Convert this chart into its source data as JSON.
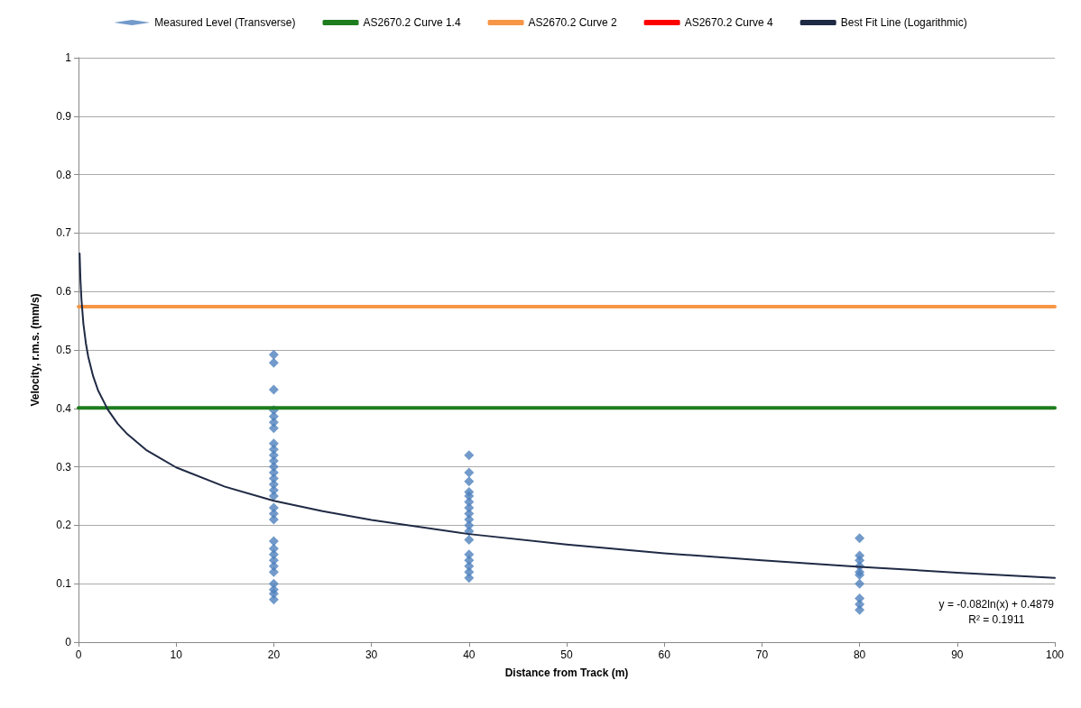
{
  "chart_data": {
    "type": "scatter",
    "xlabel": "Distance from Track (m)",
    "ylabel": "Velocity, r.m.s. (mm/s)",
    "xlim": [
      0,
      100
    ],
    "xticks": [
      0,
      10,
      20,
      30,
      40,
      50,
      60,
      70,
      80,
      90,
      100
    ],
    "ylim": [
      0,
      1
    ],
    "yticks": [
      0,
      0.1,
      0.2,
      0.3,
      0.4,
      0.5,
      0.6,
      0.7,
      0.8,
      0.9,
      1
    ],
    "grid": "y",
    "legend": "top",
    "annotations": [
      "y = -0.082ln(x) + 0.4879",
      "R² = 0.1911"
    ],
    "series": [
      {
        "name": "Measured Level (Transverse)",
        "marker": "diamond",
        "color": "#4f81bd",
        "x": [
          20,
          20,
          20,
          20,
          20,
          20,
          20,
          20,
          20,
          20,
          20,
          20,
          20,
          20,
          20,
          20,
          20,
          20,
          20,
          20,
          20,
          20,
          20,
          20,
          20,
          20,
          20,
          20,
          20,
          20,
          40,
          40,
          40,
          40,
          40,
          40,
          40,
          40,
          40,
          40,
          40,
          40,
          40,
          40,
          40,
          40,
          40,
          80,
          80,
          80,
          80,
          80,
          80,
          80,
          80,
          80,
          80
        ],
        "values": [
          0.492,
          0.478,
          0.432,
          0.397,
          0.386,
          0.376,
          0.366,
          0.34,
          0.33,
          0.32,
          0.31,
          0.3,
          0.29,
          0.28,
          0.27,
          0.26,
          0.25,
          0.23,
          0.22,
          0.21,
          0.173,
          0.16,
          0.15,
          0.14,
          0.13,
          0.12,
          0.1,
          0.09,
          0.083,
          0.073,
          0.32,
          0.29,
          0.275,
          0.257,
          0.25,
          0.24,
          0.23,
          0.22,
          0.21,
          0.2,
          0.19,
          0.175,
          0.15,
          0.14,
          0.13,
          0.12,
          0.11,
          0.178,
          0.148,
          0.14,
          0.13,
          0.12,
          0.115,
          0.1,
          0.075,
          0.065,
          0.055
        ]
      },
      {
        "name": "AS2670.2 Curve 1.4",
        "type": "line",
        "marker": "none",
        "color": "#1e7d1e",
        "x": [
          0,
          100
        ],
        "values": [
          0.401,
          0.401
        ]
      },
      {
        "name": "AS2670.2 Curve 2",
        "type": "line",
        "marker": "none",
        "color": "#f79646",
        "x": [
          0,
          100
        ],
        "values": [
          0.574,
          0.574
        ]
      },
      {
        "name": "AS2670.2 Curve 4",
        "type": "line",
        "marker": "none",
        "color": "#ff0000",
        "values": [
          null,
          null
        ]
      },
      {
        "name": "Best Fit Line (Logarithmic)",
        "type": "line",
        "marker": "none",
        "color": "#1f2a44",
        "x": [
          0.115,
          0.2,
          0.3,
          0.5,
          0.75,
          1,
          1.5,
          2,
          3,
          4,
          5,
          7,
          10,
          15,
          20,
          25,
          30,
          40,
          50,
          60,
          70,
          80,
          90,
          100
        ],
        "values": [
          0.665,
          0.62,
          0.587,
          0.545,
          0.512,
          0.488,
          0.455,
          0.431,
          0.398,
          0.374,
          0.356,
          0.328,
          0.299,
          0.266,
          0.242,
          0.224,
          0.209,
          0.185,
          0.167,
          0.152,
          0.14,
          0.129,
          0.119,
          0.11
        ]
      }
    ]
  }
}
